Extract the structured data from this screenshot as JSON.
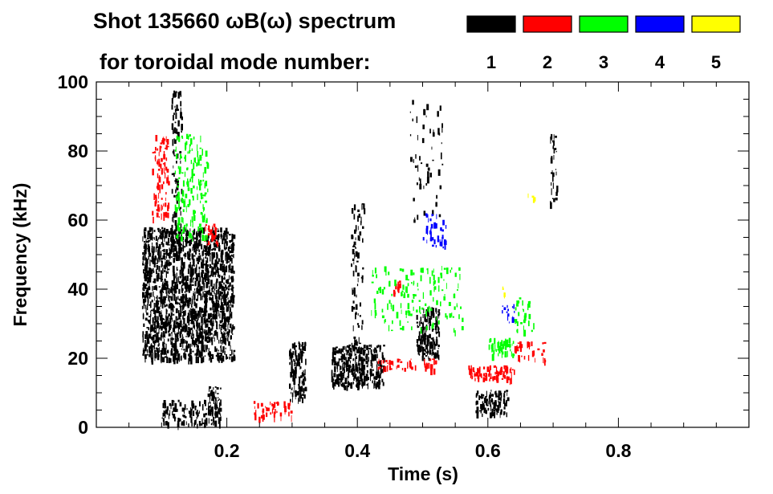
{
  "chart_data": {
    "type": "scatter",
    "title_line1": "Shot 135660 ωB(ω) spectrum",
    "title_line2": "for toroidal mode number:",
    "xlabel": "Time (s)",
    "ylabel": "Frequency (kHz)",
    "xlim": [
      0,
      1.0
    ],
    "ylim": [
      0,
      100
    ],
    "xticks": [
      {
        "value": 0.2,
        "label": "0.2"
      },
      {
        "value": 0.4,
        "label": "0.4"
      },
      {
        "value": 0.6,
        "label": "0.6"
      },
      {
        "value": 0.8,
        "label": "0.8"
      }
    ],
    "yticks": [
      {
        "value": 0,
        "label": "0"
      },
      {
        "value": 20,
        "label": "20"
      },
      {
        "value": 40,
        "label": "40"
      },
      {
        "value": 60,
        "label": "60"
      },
      {
        "value": 80,
        "label": "80"
      },
      {
        "value": 100,
        "label": "100"
      }
    ],
    "legend": [
      {
        "label": "1",
        "color": "#000000"
      },
      {
        "label": "2",
        "color": "#ff0000"
      },
      {
        "label": "3",
        "color": "#00ff00"
      },
      {
        "label": "4",
        "color": "#0000ff"
      },
      {
        "label": "5",
        "color": "#ffff00"
      }
    ],
    "regions": [
      {
        "mode": 1,
        "t": [
          0.07,
          0.21
        ],
        "f": [
          20,
          58
        ],
        "density": 0.9
      },
      {
        "mode": 1,
        "t": [
          0.1,
          0.19
        ],
        "f": [
          1,
          8
        ],
        "density": 0.5
      },
      {
        "mode": 1,
        "t": [
          0.17,
          0.19
        ],
        "f": [
          4,
          12
        ],
        "density": 0.9
      },
      {
        "mode": 1,
        "t": [
          0.115,
          0.13
        ],
        "f": [
          58,
          98
        ],
        "density": 0.35
      },
      {
        "mode": 1,
        "t": [
          0.295,
          0.32
        ],
        "f": [
          8,
          25
        ],
        "density": 0.75
      },
      {
        "mode": 1,
        "t": [
          0.36,
          0.44
        ],
        "f": [
          12,
          24
        ],
        "density": 0.9
      },
      {
        "mode": 1,
        "t": [
          0.39,
          0.41
        ],
        "f": [
          22,
          65
        ],
        "density": 0.25
      },
      {
        "mode": 1,
        "t": [
          0.49,
          0.525
        ],
        "f": [
          20,
          35
        ],
        "density": 0.75
      },
      {
        "mode": 1,
        "t": [
          0.58,
          0.63
        ],
        "f": [
          4,
          11
        ],
        "density": 0.85
      },
      {
        "mode": 1,
        "t": [
          0.695,
          0.705
        ],
        "f": [
          65,
          85
        ],
        "density": 0.45
      },
      {
        "mode": 1,
        "t": [
          0.48,
          0.53
        ],
        "f": [
          60,
          95
        ],
        "density": 0.08
      },
      {
        "mode": 2,
        "t": [
          0.085,
          0.11
        ],
        "f": [
          60,
          85
        ],
        "density": 0.35
      },
      {
        "mode": 2,
        "t": [
          0.165,
          0.185
        ],
        "f": [
          53,
          59
        ],
        "density": 0.55
      },
      {
        "mode": 2,
        "t": [
          0.455,
          0.465
        ],
        "f": [
          39,
          43
        ],
        "density": 0.75
      },
      {
        "mode": 2,
        "t": [
          0.43,
          0.52
        ],
        "f": [
          17,
          20
        ],
        "density": 0.45
      },
      {
        "mode": 2,
        "t": [
          0.57,
          0.64
        ],
        "f": [
          14,
          18
        ],
        "density": 0.85
      },
      {
        "mode": 2,
        "t": [
          0.24,
          0.3
        ],
        "f": [
          3,
          8
        ],
        "density": 0.4
      },
      {
        "mode": 2,
        "t": [
          0.64,
          0.69
        ],
        "f": [
          19,
          25
        ],
        "density": 0.3
      },
      {
        "mode": 3,
        "t": [
          0.12,
          0.17
        ],
        "f": [
          55,
          85
        ],
        "density": 0.3
      },
      {
        "mode": 3,
        "t": [
          0.42,
          0.56
        ],
        "f": [
          28,
          47
        ],
        "density": 0.15
      },
      {
        "mode": 3,
        "t": [
          0.6,
          0.64
        ],
        "f": [
          21,
          26
        ],
        "density": 0.75
      },
      {
        "mode": 3,
        "t": [
          0.64,
          0.67
        ],
        "f": [
          28,
          38
        ],
        "density": 0.25
      },
      {
        "mode": 4,
        "t": [
          0.5,
          0.535
        ],
        "f": [
          52,
          62
        ],
        "density": 0.3
      },
      {
        "mode": 4,
        "t": [
          0.62,
          0.64
        ],
        "f": [
          30,
          36
        ],
        "density": 0.3
      },
      {
        "mode": 5,
        "t": [
          0.62,
          0.63
        ],
        "f": [
          39,
          41
        ],
        "density": 0.4
      },
      {
        "mode": 5,
        "t": [
          0.66,
          0.67
        ],
        "f": [
          66,
          68
        ],
        "density": 0.4
      }
    ]
  }
}
